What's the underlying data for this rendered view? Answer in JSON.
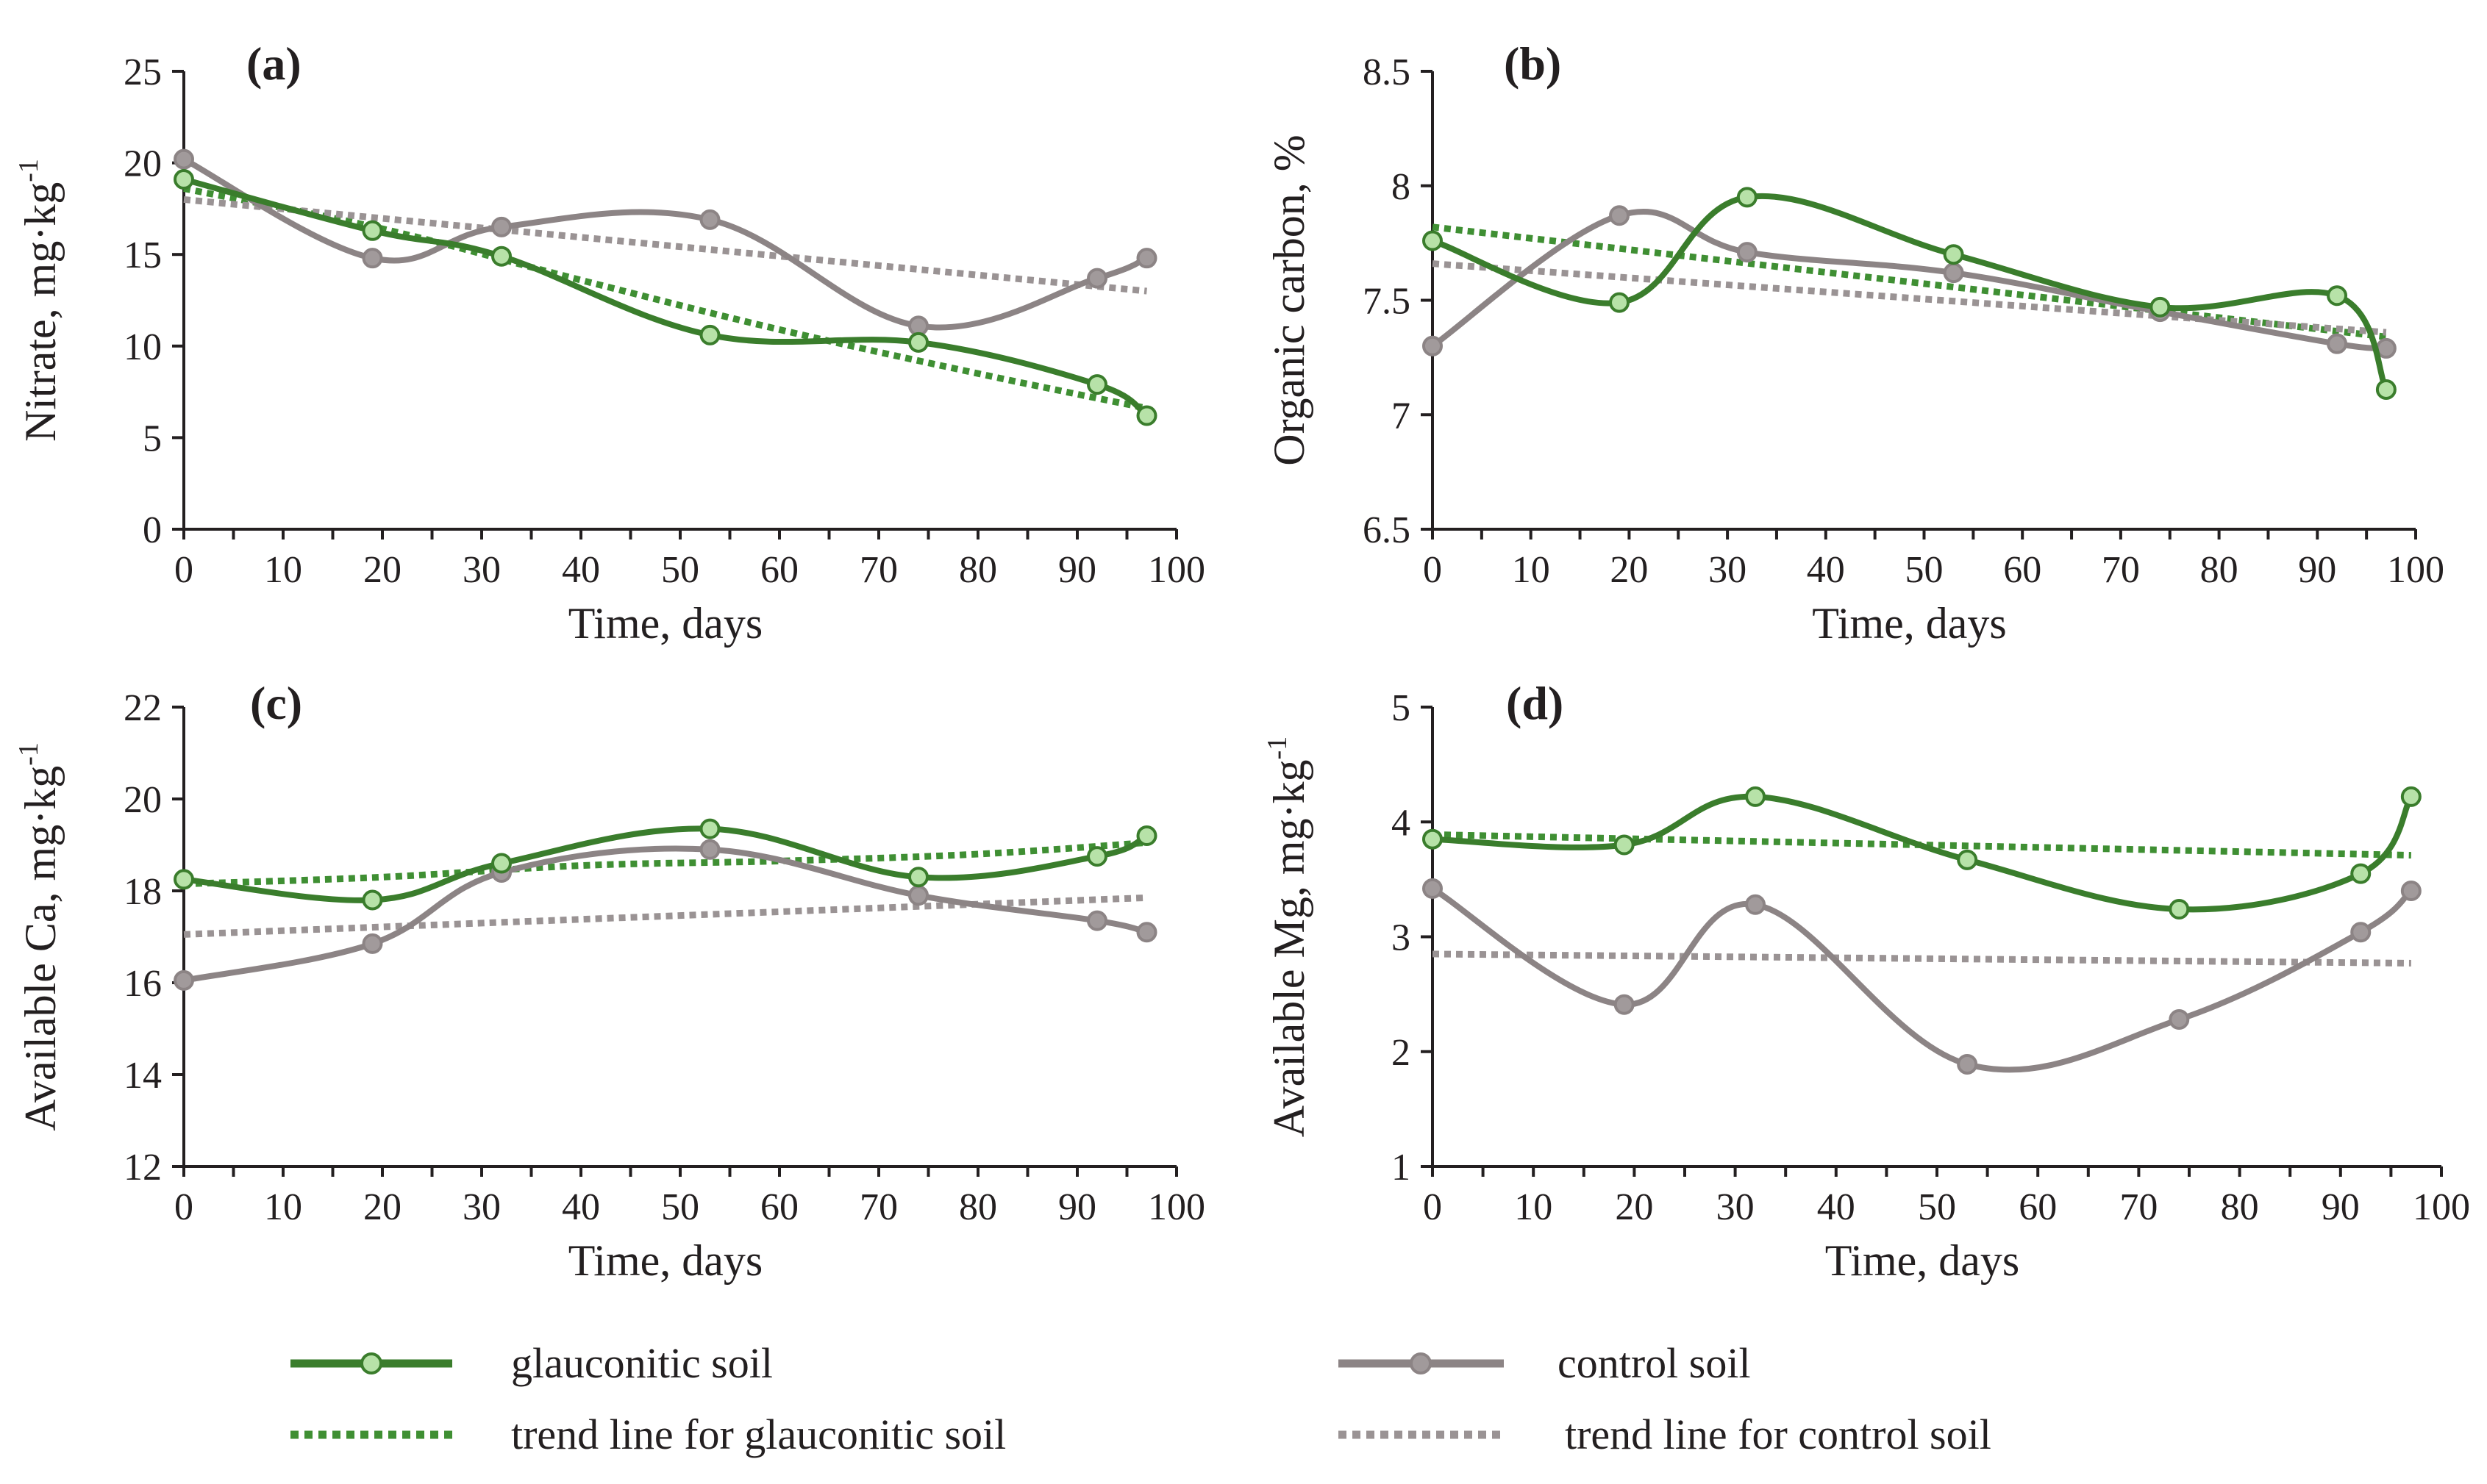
{
  "colors": {
    "glauconitic": "#3a7d2c",
    "glauconitic_marker": "#b7e2a8",
    "control": "#8c8485",
    "control_marker": "#a19a9b",
    "trend_glauconitic": "#3f8f33",
    "trend_control": "#9a9394",
    "axis": "#231f20"
  },
  "legend": {
    "glauconitic": "glauconitic soil",
    "control": "control soil",
    "trend_glauconitic": "trend line for glauconitic soil",
    "trend_control": "trend line for control soil"
  },
  "chart_data": [
    {
      "type": "line",
      "panel": "(a)",
      "xlabel": "Time, days",
      "ylabel": "Nitrate,  mg·kg",
      "ylabel_sup": "-1",
      "xlim": [
        0,
        100
      ],
      "ylim": [
        0,
        25
      ],
      "xticks": [
        0,
        10,
        20,
        30,
        40,
        50,
        60,
        70,
        80,
        90,
        100
      ],
      "yticks": [
        0,
        5,
        10,
        15,
        20,
        25
      ],
      "series": [
        {
          "name": "glauconitic soil",
          "x": [
            0,
            19,
            32,
            53,
            74,
            92,
            97
          ],
          "values": [
            19.1,
            16.3,
            14.9,
            10.6,
            10.2,
            7.9,
            6.2
          ]
        },
        {
          "name": "control soil",
          "x": [
            0,
            19,
            32,
            53,
            74,
            92,
            97
          ],
          "values": [
            20.2,
            14.8,
            16.5,
            16.9,
            11.1,
            13.7,
            14.8
          ]
        }
      ],
      "trends": [
        {
          "name": "trend line for glauconitic soil",
          "x": [
            0,
            20,
            40,
            60,
            80,
            97
          ],
          "values": [
            18.6,
            16.4,
            13.6,
            10.9,
            8.5,
            6.6
          ]
        },
        {
          "name": "trend line for control soil",
          "x": [
            0,
            97
          ],
          "values": [
            18.0,
            13.0
          ]
        }
      ]
    },
    {
      "type": "line",
      "panel": "(b)",
      "xlabel": "Time, days",
      "ylabel": "Organic carbon, %",
      "ylabel_sup": "",
      "xlim": [
        0,
        100
      ],
      "ylim": [
        6.5,
        8.5
      ],
      "xticks": [
        0,
        10,
        20,
        30,
        40,
        50,
        60,
        70,
        80,
        90,
        100
      ],
      "yticks": [
        6.5,
        7,
        7.5,
        8,
        8.5
      ],
      "ytick_labels": [
        "6.5",
        "7",
        "7.5",
        "8",
        "8.5"
      ],
      "series": [
        {
          "name": "glauconitic soil",
          "x": [
            0,
            19,
            32,
            53,
            74,
            92,
            97
          ],
          "values": [
            7.76,
            7.49,
            7.95,
            7.7,
            7.47,
            7.52,
            7.11
          ]
        },
        {
          "name": "control soil",
          "x": [
            0,
            19,
            32,
            53,
            74,
            92,
            97
          ],
          "values": [
            7.3,
            7.87,
            7.71,
            7.62,
            7.45,
            7.31,
            7.29
          ]
        }
      ],
      "trends": [
        {
          "name": "trend line for glauconitic soil",
          "x": [
            0,
            97
          ],
          "values": [
            7.82,
            7.34
          ]
        },
        {
          "name": "trend line for control soil",
          "x": [
            0,
            97
          ],
          "values": [
            7.66,
            7.36
          ]
        }
      ]
    },
    {
      "type": "line",
      "panel": "(c)",
      "xlabel": "Time, days",
      "ylabel": "Available Ca,  mg·kg",
      "ylabel_sup": "-1",
      "xlim": [
        0,
        100
      ],
      "ylim": [
        12,
        22
      ],
      "xticks": [
        0,
        10,
        20,
        30,
        40,
        50,
        60,
        70,
        80,
        90,
        100
      ],
      "yticks": [
        12,
        14,
        16,
        18,
        20,
        22
      ],
      "series": [
        {
          "name": "glauconitic soil",
          "x": [
            0,
            19,
            32,
            53,
            74,
            92,
            97
          ],
          "values": [
            18.25,
            17.8,
            18.6,
            19.35,
            18.3,
            18.75,
            19.2
          ]
        },
        {
          "name": "control soil",
          "x": [
            0,
            19,
            32,
            53,
            74,
            92,
            97
          ],
          "values": [
            16.05,
            16.85,
            18.4,
            18.9,
            17.9,
            17.35,
            17.1
          ]
        }
      ],
      "trends": [
        {
          "name": "trend line for glauconitic soil",
          "x": [
            0,
            20,
            40,
            60,
            80,
            97
          ],
          "values": [
            18.15,
            18.3,
            18.55,
            18.65,
            18.8,
            19.05
          ]
        },
        {
          "name": "trend line for control soil",
          "x": [
            0,
            97
          ],
          "values": [
            17.05,
            17.85
          ]
        }
      ]
    },
    {
      "type": "line",
      "panel": "(d)",
      "xlabel": "Time, days",
      "ylabel": "Available Mg,  mg·kg",
      "ylabel_sup": "-1",
      "xlim": [
        0,
        100
      ],
      "ylim": [
        1,
        5
      ],
      "xticks": [
        0,
        10,
        20,
        30,
        40,
        50,
        60,
        70,
        80,
        90,
        100
      ],
      "yticks": [
        1,
        2,
        3,
        4,
        5
      ],
      "series": [
        {
          "name": "glauconitic soil",
          "x": [
            0,
            19,
            32,
            53,
            74,
            92,
            97
          ],
          "values": [
            3.85,
            3.8,
            4.22,
            3.67,
            3.24,
            3.55,
            4.22
          ]
        },
        {
          "name": "control soil",
          "x": [
            0,
            19,
            32,
            53,
            74,
            92,
            97
          ],
          "values": [
            3.42,
            2.41,
            3.28,
            1.89,
            2.28,
            3.04,
            3.4
          ]
        }
      ],
      "trends": [
        {
          "name": "trend line for glauconitic soil",
          "x": [
            0,
            97
          ],
          "values": [
            3.89,
            3.71
          ]
        },
        {
          "name": "trend line for control soil",
          "x": [
            0,
            97
          ],
          "values": [
            2.85,
            2.77
          ]
        }
      ]
    }
  ]
}
